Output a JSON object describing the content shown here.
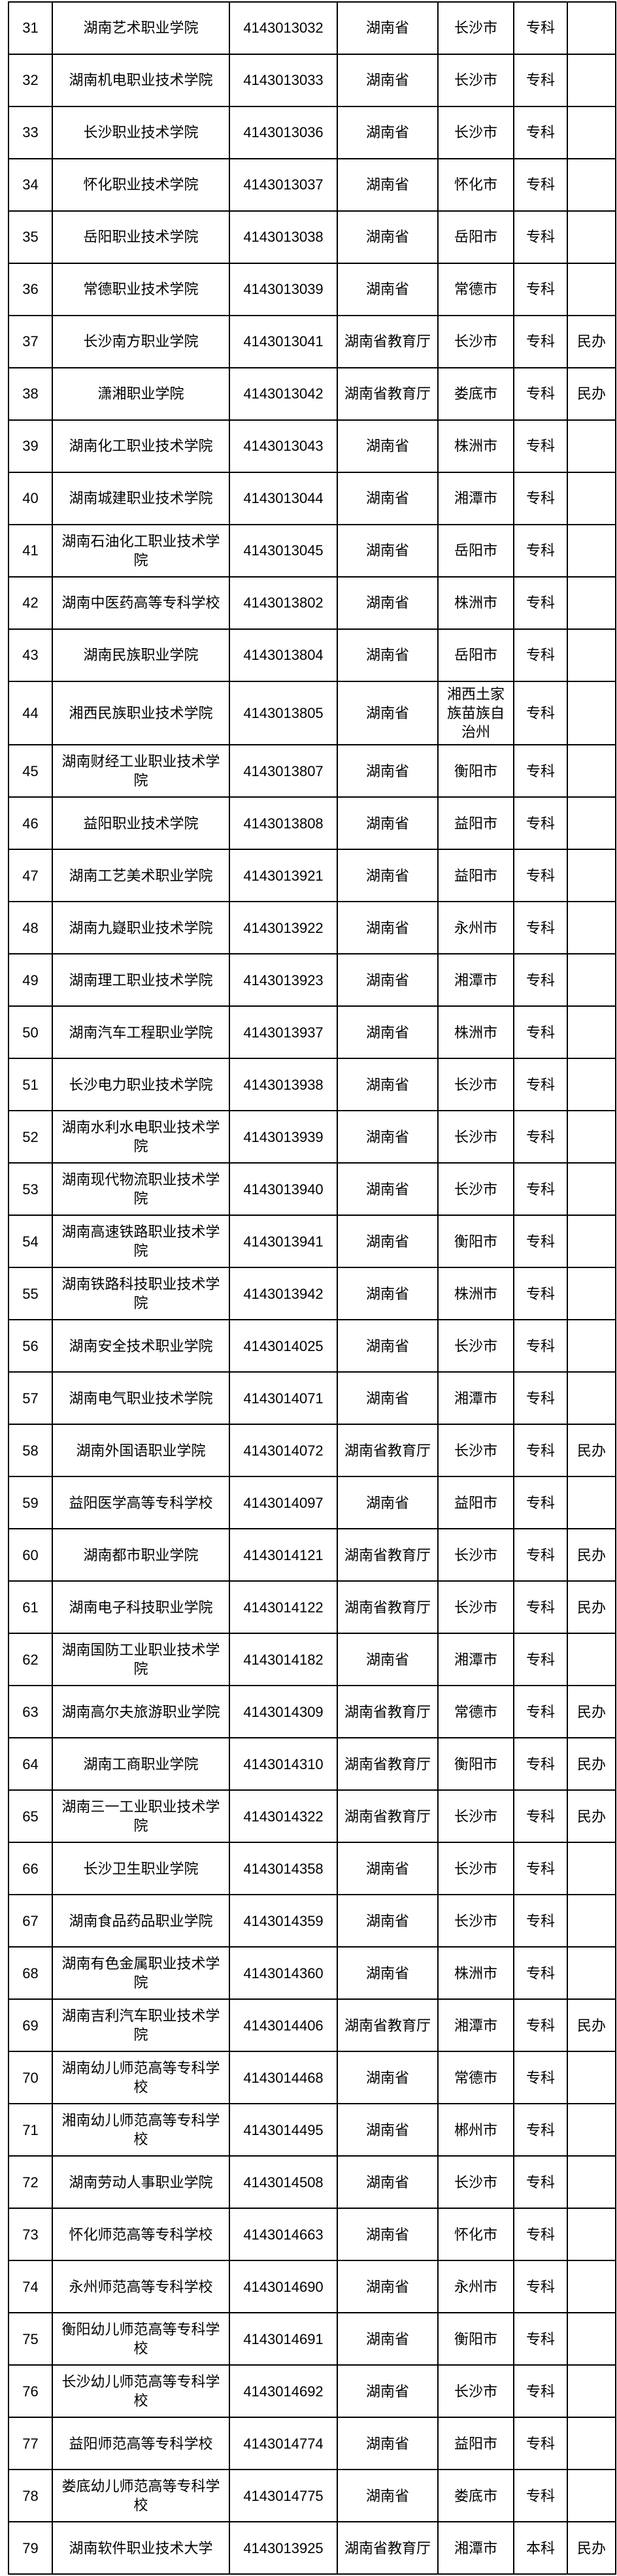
{
  "table": {
    "description": "高等学校名单表格（湖南省高职专科院校，第31-79行）",
    "rows": [
      {
        "no": "31",
        "name": "湖南艺术职业学院",
        "code": "4143013032",
        "dept": "湖南省",
        "city": "长沙市",
        "level": "专科",
        "note": ""
      },
      {
        "no": "32",
        "name": "湖南机电职业技术学院",
        "code": "4143013033",
        "dept": "湖南省",
        "city": "长沙市",
        "level": "专科",
        "note": ""
      },
      {
        "no": "33",
        "name": "长沙职业技术学院",
        "code": "4143013036",
        "dept": "湖南省",
        "city": "长沙市",
        "level": "专科",
        "note": ""
      },
      {
        "no": "34",
        "name": "怀化职业技术学院",
        "code": "4143013037",
        "dept": "湖南省",
        "city": "怀化市",
        "level": "专科",
        "note": ""
      },
      {
        "no": "35",
        "name": "岳阳职业技术学院",
        "code": "4143013038",
        "dept": "湖南省",
        "city": "岳阳市",
        "level": "专科",
        "note": ""
      },
      {
        "no": "36",
        "name": "常德职业技术学院",
        "code": "4143013039",
        "dept": "湖南省",
        "city": "常德市",
        "level": "专科",
        "note": ""
      },
      {
        "no": "37",
        "name": "长沙南方职业学院",
        "code": "4143013041",
        "dept": "湖南省教育厅",
        "city": "长沙市",
        "level": "专科",
        "note": "民办"
      },
      {
        "no": "38",
        "name": "潇湘职业学院",
        "code": "4143013042",
        "dept": "湖南省教育厅",
        "city": "娄底市",
        "level": "专科",
        "note": "民办"
      },
      {
        "no": "39",
        "name": "湖南化工职业技术学院",
        "code": "4143013043",
        "dept": "湖南省",
        "city": "株洲市",
        "level": "专科",
        "note": ""
      },
      {
        "no": "40",
        "name": "湖南城建职业技术学院",
        "code": "4143013044",
        "dept": "湖南省",
        "city": "湘潭市",
        "level": "专科",
        "note": ""
      },
      {
        "no": "41",
        "name": "湖南石油化工职业技术学院",
        "code": "4143013045",
        "dept": "湖南省",
        "city": "岳阳市",
        "level": "专科",
        "note": ""
      },
      {
        "no": "42",
        "name": "湖南中医药高等专科学校",
        "code": "4143013802",
        "dept": "湖南省",
        "city": "株洲市",
        "level": "专科",
        "note": ""
      },
      {
        "no": "43",
        "name": "湖南民族职业学院",
        "code": "4143013804",
        "dept": "湖南省",
        "city": "岳阳市",
        "level": "专科",
        "note": ""
      },
      {
        "no": "44",
        "name": "湘西民族职业技术学院",
        "code": "4143013805",
        "dept": "湖南省",
        "city": "湘西土家族苗族自治州",
        "level": "专科",
        "note": ""
      },
      {
        "no": "45",
        "name": "湖南财经工业职业技术学院",
        "code": "4143013807",
        "dept": "湖南省",
        "city": "衡阳市",
        "level": "专科",
        "note": ""
      },
      {
        "no": "46",
        "name": "益阳职业技术学院",
        "code": "4143013808",
        "dept": "湖南省",
        "city": "益阳市",
        "level": "专科",
        "note": ""
      },
      {
        "no": "47",
        "name": "湖南工艺美术职业学院",
        "code": "4143013921",
        "dept": "湖南省",
        "city": "益阳市",
        "level": "专科",
        "note": ""
      },
      {
        "no": "48",
        "name": "湖南九嶷职业技术学院",
        "code": "4143013922",
        "dept": "湖南省",
        "city": "永州市",
        "level": "专科",
        "note": ""
      },
      {
        "no": "49",
        "name": "湖南理工职业技术学院",
        "code": "4143013923",
        "dept": "湖南省",
        "city": "湘潭市",
        "level": "专科",
        "note": ""
      },
      {
        "no": "50",
        "name": "湖南汽车工程职业学院",
        "code": "4143013937",
        "dept": "湖南省",
        "city": "株洲市",
        "level": "专科",
        "note": ""
      },
      {
        "no": "51",
        "name": "长沙电力职业技术学院",
        "code": "4143013938",
        "dept": "湖南省",
        "city": "长沙市",
        "level": "专科",
        "note": ""
      },
      {
        "no": "52",
        "name": "湖南水利水电职业技术学院",
        "code": "4143013939",
        "dept": "湖南省",
        "city": "长沙市",
        "level": "专科",
        "note": ""
      },
      {
        "no": "53",
        "name": "湖南现代物流职业技术学院",
        "code": "4143013940",
        "dept": "湖南省",
        "city": "长沙市",
        "level": "专科",
        "note": ""
      },
      {
        "no": "54",
        "name": "湖南高速铁路职业技术学院",
        "code": "4143013941",
        "dept": "湖南省",
        "city": "衡阳市",
        "level": "专科",
        "note": ""
      },
      {
        "no": "55",
        "name": "湖南铁路科技职业技术学院",
        "code": "4143013942",
        "dept": "湖南省",
        "city": "株洲市",
        "level": "专科",
        "note": ""
      },
      {
        "no": "56",
        "name": "湖南安全技术职业学院",
        "code": "4143014025",
        "dept": "湖南省",
        "city": "长沙市",
        "level": "专科",
        "note": ""
      },
      {
        "no": "57",
        "name": "湖南电气职业技术学院",
        "code": "4143014071",
        "dept": "湖南省",
        "city": "湘潭市",
        "level": "专科",
        "note": ""
      },
      {
        "no": "58",
        "name": "湖南外国语职业学院",
        "code": "4143014072",
        "dept": "湖南省教育厅",
        "city": "长沙市",
        "level": "专科",
        "note": "民办"
      },
      {
        "no": "59",
        "name": "益阳医学高等专科学校",
        "code": "4143014097",
        "dept": "湖南省",
        "city": "益阳市",
        "level": "专科",
        "note": ""
      },
      {
        "no": "60",
        "name": "湖南都市职业学院",
        "code": "4143014121",
        "dept": "湖南省教育厅",
        "city": "长沙市",
        "level": "专科",
        "note": "民办"
      },
      {
        "no": "61",
        "name": "湖南电子科技职业学院",
        "code": "4143014122",
        "dept": "湖南省教育厅",
        "city": "长沙市",
        "level": "专科",
        "note": "民办"
      },
      {
        "no": "62",
        "name": "湖南国防工业职业技术学院",
        "code": "4143014182",
        "dept": "湖南省",
        "city": "湘潭市",
        "level": "专科",
        "note": ""
      },
      {
        "no": "63",
        "name": "湖南高尔夫旅游职业学院",
        "code": "4143014309",
        "dept": "湖南省教育厅",
        "city": "常德市",
        "level": "专科",
        "note": "民办"
      },
      {
        "no": "64",
        "name": "湖南工商职业学院",
        "code": "4143014310",
        "dept": "湖南省教育厅",
        "city": "衡阳市",
        "level": "专科",
        "note": "民办"
      },
      {
        "no": "65",
        "name": "湖南三一工业职业技术学院",
        "code": "4143014322",
        "dept": "湖南省教育厅",
        "city": "长沙市",
        "level": "专科",
        "note": "民办"
      },
      {
        "no": "66",
        "name": "长沙卫生职业学院",
        "code": "4143014358",
        "dept": "湖南省",
        "city": "长沙市",
        "level": "专科",
        "note": ""
      },
      {
        "no": "67",
        "name": "湖南食品药品职业学院",
        "code": "4143014359",
        "dept": "湖南省",
        "city": "长沙市",
        "level": "专科",
        "note": ""
      },
      {
        "no": "68",
        "name": "湖南有色金属职业技术学院",
        "code": "4143014360",
        "dept": "湖南省",
        "city": "株洲市",
        "level": "专科",
        "note": ""
      },
      {
        "no": "69",
        "name": "湖南吉利汽车职业技术学院",
        "code": "4143014406",
        "dept": "湖南省教育厅",
        "city": "湘潭市",
        "level": "专科",
        "note": "民办"
      },
      {
        "no": "70",
        "name": "湖南幼儿师范高等专科学校",
        "code": "4143014468",
        "dept": "湖南省",
        "city": "常德市",
        "level": "专科",
        "note": ""
      },
      {
        "no": "71",
        "name": "湘南幼儿师范高等专科学校",
        "code": "4143014495",
        "dept": "湖南省",
        "city": "郴州市",
        "level": "专科",
        "note": ""
      },
      {
        "no": "72",
        "name": "湖南劳动人事职业学院",
        "code": "4143014508",
        "dept": "湖南省",
        "city": "长沙市",
        "level": "专科",
        "note": ""
      },
      {
        "no": "73",
        "name": "怀化师范高等专科学校",
        "code": "4143014663",
        "dept": "湖南省",
        "city": "怀化市",
        "level": "专科",
        "note": ""
      },
      {
        "no": "74",
        "name": "永州师范高等专科学校",
        "code": "4143014690",
        "dept": "湖南省",
        "city": "永州市",
        "level": "专科",
        "note": ""
      },
      {
        "no": "75",
        "name": "衡阳幼儿师范高等专科学校",
        "code": "4143014691",
        "dept": "湖南省",
        "city": "衡阳市",
        "level": "专科",
        "note": ""
      },
      {
        "no": "76",
        "name": "长沙幼儿师范高等专科学校",
        "code": "4143014692",
        "dept": "湖南省",
        "city": "长沙市",
        "level": "专科",
        "note": ""
      },
      {
        "no": "77",
        "name": "益阳师范高等专科学校",
        "code": "4143014774",
        "dept": "湖南省",
        "city": "益阳市",
        "level": "专科",
        "note": ""
      },
      {
        "no": "78",
        "name": "娄底幼儿师范高等专科学校",
        "code": "4143014775",
        "dept": "湖南省",
        "city": "娄底市",
        "level": "专科",
        "note": ""
      },
      {
        "no": "79",
        "name": "湖南软件职业技术大学",
        "code": "4143013925",
        "dept": "湖南省教育厅",
        "city": "湘潭市",
        "level": "本科",
        "note": "民办"
      }
    ]
  }
}
